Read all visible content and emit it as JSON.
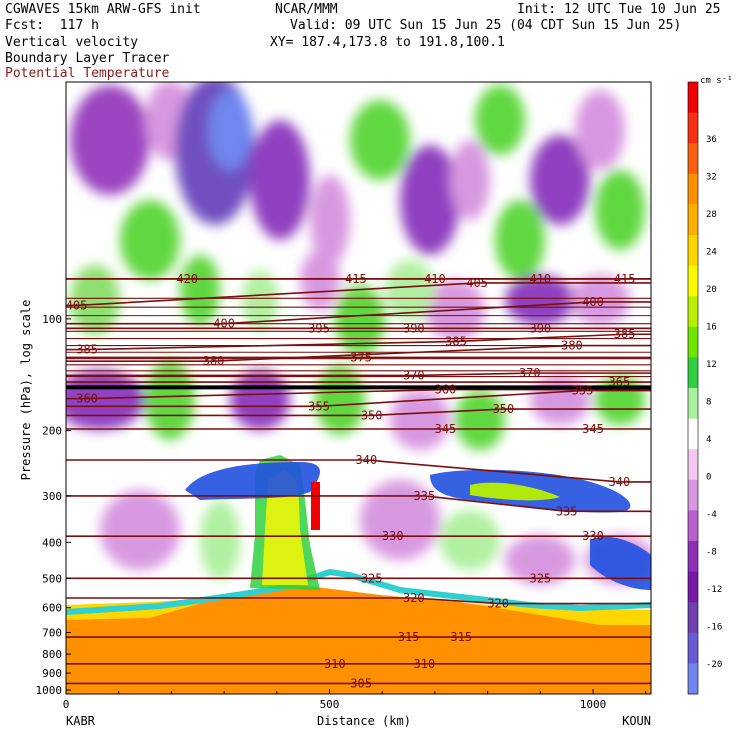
{
  "header": {
    "model": "CGWAVES 15km ARW-GFS init",
    "org": "NCAR/MMM",
    "init": "Init: 12 UTC Tue 10 Jun 25",
    "fcst": "Fcst:  117 h",
    "valid": "Valid: 09 UTC Sun 15 Jun 25 (04 CDT Sun 15 Jun 25)",
    "field1": "Vertical velocity",
    "xy": "XY= 187.4,173.8 to 191.8,100.1",
    "field2": "Boundary Layer Tracer",
    "field3": "Potential Temperature"
  },
  "colors": {
    "theta": "#7a0f0f",
    "boundary_line": "#000000"
  },
  "chart_data": {
    "type": "heatmap",
    "xlabel": "Distance (km)",
    "ylabel": "Pressure (hPa), log scale",
    "x_ticks": [
      0,
      500,
      1000
    ],
    "xlim": [
      0,
      1110
    ],
    "y_ticks": [
      100,
      200,
      300,
      400,
      500,
      600,
      700,
      800,
      900,
      1000
    ],
    "ylim": [
      1025,
      23
    ],
    "y_scale": "log",
    "left_station": "KABR",
    "right_station": "KOUN",
    "colorbar": {
      "unit": "cm s⁻¹",
      "ticks": [
        36,
        32,
        28,
        24,
        20,
        16,
        12,
        8,
        4,
        0,
        -4,
        -8,
        -12,
        -16,
        -20
      ],
      "colors": [
        "#f00000",
        "#f63010",
        "#fa6010",
        "#ff9000",
        "#ffb000",
        "#ffd600",
        "#fffa00",
        "#b8f000",
        "#6ee400",
        "#30d040",
        "#a8f0a0",
        "#ffffff",
        "#f0c8f0",
        "#d898e0",
        "#b860d0",
        "#9030b8",
        "#7818a8",
        "#7040b0",
        "#6a5ad6",
        "#6f86f0"
      ]
    },
    "theta_labels": [
      {
        "text": "420",
        "x": 230,
        "p": 78
      },
      {
        "text": "415",
        "x": 550,
        "p": 78
      },
      {
        "text": "410",
        "x": 700,
        "p": 78
      },
      {
        "text": "405",
        "x": 780,
        "p": 80
      },
      {
        "text": "410",
        "x": 900,
        "p": 78
      },
      {
        "text": "415",
        "x": 1060,
        "p": 78
      },
      {
        "text": "405",
        "x": 20,
        "p": 92
      },
      {
        "text": "400",
        "x": 1000,
        "p": 90
      },
      {
        "text": "400",
        "x": 300,
        "p": 103
      },
      {
        "text": "395",
        "x": 480,
        "p": 106
      },
      {
        "text": "390",
        "x": 660,
        "p": 106
      },
      {
        "text": "390",
        "x": 900,
        "p": 106
      },
      {
        "text": "385",
        "x": 1060,
        "p": 110
      },
      {
        "text": "385",
        "x": 40,
        "p": 121
      },
      {
        "text": "385",
        "x": 740,
        "p": 115
      },
      {
        "text": "380",
        "x": 960,
        "p": 118
      },
      {
        "text": "380",
        "x": 280,
        "p": 130
      },
      {
        "text": "375",
        "x": 560,
        "p": 127
      },
      {
        "text": "370",
        "x": 660,
        "p": 142
      },
      {
        "text": "370",
        "x": 880,
        "p": 140
      },
      {
        "text": "365",
        "x": 1050,
        "p": 148
      },
      {
        "text": "355",
        "x": 980,
        "p": 156
      },
      {
        "text": "360",
        "x": 720,
        "p": 155
      },
      {
        "text": "360",
        "x": 40,
        "p": 164
      },
      {
        "text": "355",
        "x": 480,
        "p": 172
      },
      {
        "text": "350",
        "x": 580,
        "p": 182
      },
      {
        "text": "350",
        "x": 830,
        "p": 175
      },
      {
        "text": "345",
        "x": 720,
        "p": 198
      },
      {
        "text": "345",
        "x": 1000,
        "p": 198
      },
      {
        "text": "340",
        "x": 570,
        "p": 240
      },
      {
        "text": "340",
        "x": 1050,
        "p": 275
      },
      {
        "text": "335",
        "x": 680,
        "p": 300
      },
      {
        "text": "335",
        "x": 950,
        "p": 330
      },
      {
        "text": "330",
        "x": 620,
        "p": 385
      },
      {
        "text": "330",
        "x": 1000,
        "p": 385
      },
      {
        "text": "325",
        "x": 580,
        "p": 500
      },
      {
        "text": "325",
        "x": 900,
        "p": 500
      },
      {
        "text": "320",
        "x": 660,
        "p": 565
      },
      {
        "text": "320",
        "x": 820,
        "p": 585
      },
      {
        "text": "315",
        "x": 650,
        "p": 720
      },
      {
        "text": "315",
        "x": 750,
        "p": 720
      },
      {
        "text": "310",
        "x": 510,
        "p": 850
      },
      {
        "text": "310",
        "x": 680,
        "p": 850
      },
      {
        "text": "305",
        "x": 560,
        "p": 960
      }
    ]
  }
}
